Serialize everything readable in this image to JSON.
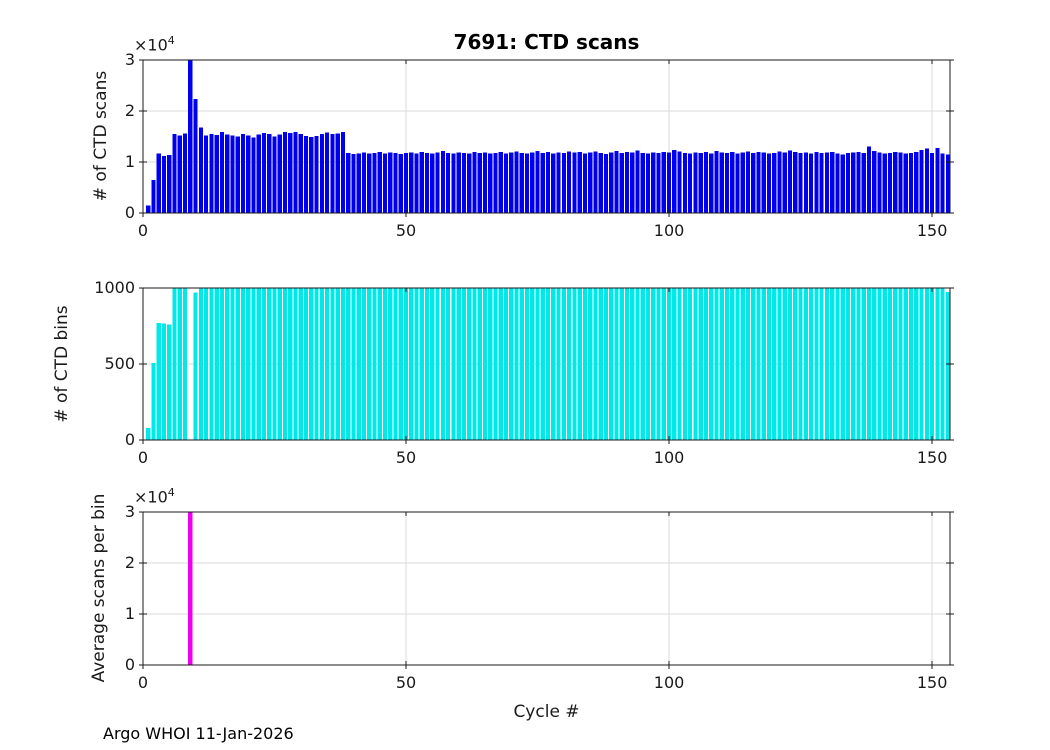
{
  "title": "7691: CTD scans",
  "footer": "Argo WHOI 11-Jan-2026",
  "exponent": {
    "base": "×10",
    "exp": "4"
  },
  "colors": {
    "scans": "#0000EE",
    "bins": "#00E8E8",
    "avg": "#EE00EE",
    "grid": "#DBDBDB",
    "axis": "#1a1a1a"
  },
  "chart_data": [
    {
      "type": "bar",
      "title": "7691: CTD scans",
      "ylabel": "# of CTD scans",
      "xlabel": "",
      "y_exponent": "×10^4",
      "x_start": 1,
      "xlim": [
        0,
        153.4
      ],
      "xticks": [
        0,
        50,
        100,
        150
      ],
      "xtick_labels": [
        "0",
        "50",
        "100",
        "150"
      ],
      "ylim": [
        0,
        30000
      ],
      "yticks": [
        0,
        10000,
        20000,
        30000
      ],
      "ytick_labels": [
        "0",
        "1",
        "2",
        "3"
      ],
      "grid": true,
      "legend": "none",
      "bar_color": "#0000EE",
      "values": [
        1500,
        6500,
        11700,
        11200,
        11400,
        15500,
        15200,
        15600,
        30484,
        22400,
        16800,
        15200,
        15500,
        15300,
        15900,
        15400,
        15200,
        15000,
        15500,
        15200,
        14800,
        15400,
        15700,
        15500,
        15000,
        15400,
        15900,
        15700,
        15900,
        15500,
        15100,
        14900,
        15100,
        15500,
        15800,
        15500,
        15600,
        15900,
        11800,
        11600,
        11700,
        11900,
        11700,
        11800,
        12000,
        11700,
        11900,
        11800,
        11600,
        11800,
        11900,
        11700,
        12000,
        11800,
        11700,
        11900,
        12200,
        11800,
        11700,
        11900,
        11800,
        11700,
        12000,
        11800,
        11900,
        11700,
        11800,
        12000,
        11700,
        11900,
        12100,
        11800,
        11700,
        11900,
        12200,
        11800,
        12000,
        11700,
        11900,
        11800,
        12100,
        11900,
        12000,
        11700,
        11900,
        12100,
        11800,
        11600,
        11900,
        12200,
        11800,
        12000,
        11900,
        12300,
        11800,
        11700,
        11900,
        11800,
        12000,
        11900,
        12400,
        12100,
        11800,
        11700,
        11900,
        11800,
        12000,
        11700,
        12200,
        11900,
        11800,
        12000,
        11700,
        11900,
        12100,
        11800,
        12000,
        11900,
        11700,
        11800,
        12100,
        11900,
        12300,
        12000,
        11800,
        11900,
        11700,
        12000,
        11800,
        11900,
        12000,
        11700,
        11500,
        11800,
        11900,
        12000,
        11800,
        13000,
        12200,
        11900,
        11700,
        11800,
        12000,
        11900,
        11700,
        11800,
        12000,
        12400,
        12600,
        11800,
        12700,
        11700,
        11500
      ]
    },
    {
      "type": "bar",
      "title": "",
      "ylabel": "# of CTD bins",
      "xlabel": "",
      "y_exponent": "",
      "x_start": 1,
      "xlim": [
        0,
        153.4
      ],
      "xticks": [
        0,
        50,
        100,
        150
      ],
      "xtick_labels": [
        "0",
        "50",
        "100",
        "150"
      ],
      "ylim": [
        0,
        1000
      ],
      "yticks": [
        0,
        500,
        1000
      ],
      "ytick_labels": [
        "0",
        "500",
        "1000"
      ],
      "grid": true,
      "legend": "none",
      "bar_color": "#00E8E8",
      "values": [
        80,
        505,
        770,
        768,
        760,
        1000,
        1000,
        1000,
        1,
        970,
        1000,
        1000,
        1000,
        1000,
        1000,
        1000,
        1000,
        1000,
        1000,
        1000,
        1000,
        1000,
        1000,
        1000,
        1000,
        1000,
        1000,
        1000,
        1000,
        1000,
        1000,
        1000,
        1000,
        1000,
        1000,
        1000,
        1000,
        1000,
        1000,
        1000,
        1000,
        1000,
        1000,
        1000,
        1000,
        1000,
        1000,
        1000,
        1000,
        1000,
        1000,
        1000,
        1000,
        1000,
        1000,
        1000,
        1000,
        1000,
        1000,
        1000,
        1000,
        1000,
        1000,
        1000,
        1000,
        1000,
        1000,
        1000,
        1000,
        1000,
        1000,
        1000,
        1000,
        1000,
        1000,
        1000,
        1000,
        1000,
        1000,
        1000,
        1000,
        1000,
        1000,
        1000,
        1000,
        1000,
        1000,
        1000,
        1000,
        1000,
        1000,
        1000,
        1000,
        1000,
        1000,
        1000,
        1000,
        1000,
        1000,
        1000,
        1000,
        1000,
        1000,
        1000,
        1000,
        1000,
        1000,
        1000,
        1000,
        1000,
        1000,
        1000,
        1000,
        1000,
        1000,
        1000,
        1000,
        1000,
        1000,
        1000,
        1000,
        1000,
        1000,
        1000,
        1000,
        1000,
        1000,
        1000,
        1000,
        1000,
        1000,
        1000,
        1000,
        1000,
        1000,
        1000,
        1000,
        1000,
        1000,
        1000,
        1000,
        1000,
        1000,
        1000,
        1000,
        1000,
        1000,
        1000,
        1000,
        1000,
        1000,
        1000,
        975
      ]
    },
    {
      "type": "bar",
      "title": "",
      "ylabel": "Average scans per bin",
      "xlabel": "Cycle #",
      "y_exponent": "×10^4",
      "x_start": 1,
      "xlim": [
        0,
        153.4
      ],
      "xticks": [
        0,
        50,
        100,
        150
      ],
      "xtick_labels": [
        "0",
        "50",
        "100",
        "150"
      ],
      "ylim": [
        0,
        30000
      ],
      "yticks": [
        0,
        10000,
        20000,
        30000
      ],
      "ytick_labels": [
        "0",
        "1",
        "2",
        "3"
      ],
      "grid": true,
      "legend": "none",
      "bar_color": "#EE00EE",
      "values": [
        19,
        13,
        15,
        15,
        15,
        16,
        15,
        16,
        30484,
        23,
        17,
        15,
        16,
        15,
        16,
        15,
        15,
        15,
        16,
        15,
        15,
        15,
        16,
        16,
        15,
        15,
        16,
        16,
        16,
        16,
        15,
        15,
        15,
        16,
        16,
        16,
        16,
        16,
        12,
        12,
        12,
        12,
        12,
        12,
        12,
        12,
        12,
        12,
        12,
        12,
        12,
        12,
        12,
        12,
        12,
        12,
        12,
        12,
        12,
        12,
        12,
        12,
        12,
        12,
        12,
        12,
        12,
        12,
        12,
        12,
        12,
        12,
        12,
        12,
        12,
        12,
        12,
        12,
        12,
        12,
        12,
        12,
        12,
        12,
        12,
        12,
        12,
        12,
        12,
        12,
        12,
        12,
        12,
        12,
        12,
        12,
        12,
        12,
        12,
        12,
        12,
        12,
        12,
        12,
        12,
        12,
        12,
        12,
        12,
        12,
        12,
        12,
        12,
        12,
        12,
        12,
        12,
        12,
        12,
        12,
        12,
        12,
        12,
        12,
        12,
        12,
        12,
        12,
        12,
        12,
        12,
        12,
        12,
        12,
        12,
        12,
        12,
        13,
        12,
        12,
        12,
        12,
        12,
        12,
        12,
        12,
        12,
        12,
        13,
        12,
        13,
        12,
        12
      ]
    }
  ]
}
